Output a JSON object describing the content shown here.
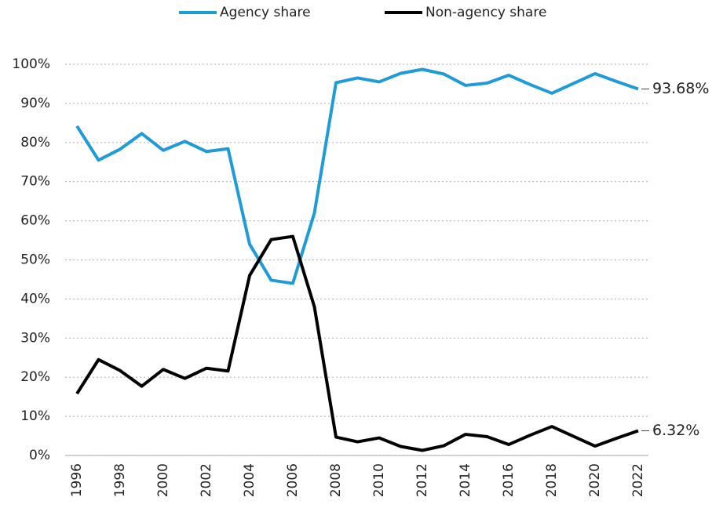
{
  "chart_data": {
    "type": "line",
    "x": [
      1996,
      1997,
      1998,
      1999,
      2000,
      2001,
      2002,
      2003,
      2004,
      2005,
      2006,
      2007,
      2008,
      2009,
      2010,
      2011,
      2012,
      2013,
      2014,
      2015,
      2016,
      2017,
      2018,
      2019,
      2020,
      2021,
      2022
    ],
    "xticks": [
      1996,
      1998,
      2000,
      2002,
      2004,
      2006,
      2008,
      2010,
      2012,
      2014,
      2016,
      2018,
      2020,
      2022
    ],
    "xlim": [
      1996,
      2022
    ],
    "series": [
      {
        "name": "Agency share",
        "color": "#1f9bd7",
        "values": [
          84.2,
          75.5,
          78.3,
          82.3,
          78,
          80.3,
          77.7,
          78.4,
          54,
          44.8,
          44,
          62,
          95.3,
          96.5,
          95.5,
          97.7,
          98.7,
          97.5,
          94.6,
          95.2,
          97.2,
          94.8,
          92.6,
          95.1,
          97.6,
          95.6,
          93.68
        ],
        "value_labels": [
          null,
          null,
          null,
          null,
          null,
          null,
          null,
          null,
          null,
          null,
          null,
          null,
          null,
          null,
          null,
          null,
          null,
          null,
          null,
          null,
          null,
          null,
          null,
          null,
          null,
          null,
          "93.68%"
        ]
      },
      {
        "name": "Non-agency share",
        "color": "#000000",
        "values": [
          15.8,
          24.5,
          21.7,
          17.7,
          22,
          19.7,
          22.3,
          21.6,
          46,
          55.2,
          56,
          38,
          4.7,
          3.5,
          4.5,
          2.3,
          1.3,
          2.5,
          5.4,
          4.8,
          2.8,
          5.2,
          7.4,
          4.9,
          2.4,
          4.4,
          6.32
        ],
        "value_labels": [
          null,
          null,
          null,
          null,
          null,
          null,
          null,
          null,
          null,
          null,
          null,
          null,
          null,
          null,
          null,
          null,
          null,
          null,
          null,
          null,
          null,
          null,
          null,
          null,
          null,
          null,
          "6.32%"
        ]
      }
    ],
    "ylim": [
      0,
      100
    ],
    "yticks": [
      {
        "value": 0,
        "label": "0%"
      },
      {
        "value": 10,
        "label": "10%"
      },
      {
        "value": 20,
        "label": "20%"
      },
      {
        "value": 30,
        "label": "30%"
      },
      {
        "value": 40,
        "label": "40%"
      },
      {
        "value": 50,
        "label": "50%"
      },
      {
        "value": 60,
        "label": "60%"
      },
      {
        "value": 70,
        "label": "70%"
      },
      {
        "value": 80,
        "label": "80%"
      },
      {
        "value": 90,
        "label": "90%"
      },
      {
        "value": 100,
        "label": "100%"
      }
    ],
    "grid": true,
    "legend": "top"
  }
}
